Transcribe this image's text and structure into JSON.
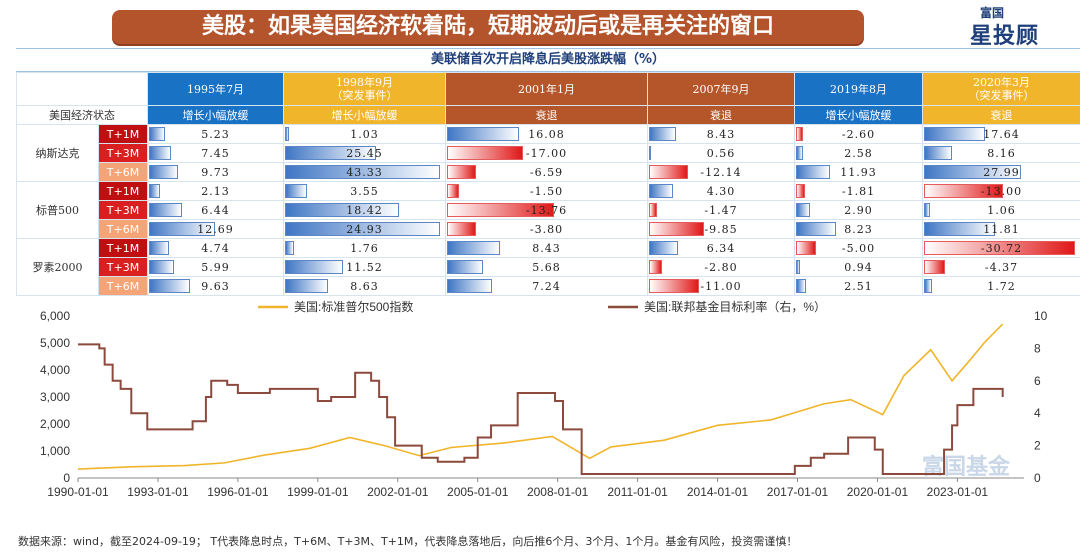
{
  "title": "美股：如果美国经济软着陆，短期波动后或是再关注的窗口",
  "logo": {
    "line1": "富国",
    "line2": "星投顾"
  },
  "table": {
    "title": "美联储首次开启降息后美股涨跌幅（%）",
    "status_header": "美国经济状态",
    "events": [
      {
        "date": "1995年7月",
        "note": "",
        "status": "增长小幅放缓",
        "color": "#1a72c5"
      },
      {
        "date": "1998年9月",
        "note": "（突发事件）",
        "status": "增长小幅放缓",
        "color": "#f0b52a"
      },
      {
        "date": "2001年1月",
        "note": "",
        "status": "衰退",
        "color": "#b5562a"
      },
      {
        "date": "2007年9月",
        "note": "",
        "status": "衰退",
        "color": "#b5562a"
      },
      {
        "date": "2019年8月",
        "note": "",
        "status": "增长小幅放缓",
        "color": "#1a72c5"
      },
      {
        "date": "2020年3月",
        "note": "（突发事件）",
        "status": "衰退",
        "color": "#f0b52a"
      }
    ],
    "groups": [
      {
        "name": "纳斯达克",
        "rows": [
          {
            "label": "T+1M",
            "values": [
              "5.23",
              "1.03",
              "16.08",
              "8.43",
              "-2.60",
              "17.64"
            ]
          },
          {
            "label": "T+3M",
            "values": [
              "7.45",
              "25.45",
              "-17.00",
              "0.56",
              "2.58",
              "8.16"
            ]
          },
          {
            "label": "T+6M",
            "values": [
              "9.73",
              "43.33",
              "-6.59",
              "-12.14",
              "11.93",
              "27.99"
            ]
          }
        ]
      },
      {
        "name": "标普500",
        "rows": [
          {
            "label": "T+1M",
            "values": [
              "2.13",
              "3.55",
              "-1.50",
              "4.30",
              "-1.81",
              "-13.00"
            ]
          },
          {
            "label": "T+3M",
            "values": [
              "6.44",
              "18.42",
              "-13.76",
              "-1.47",
              "2.90",
              "1.06"
            ]
          },
          {
            "label": "T+6M",
            "values": [
              "12.69",
              "24.93",
              "-3.80",
              "-9.85",
              "8.23",
              "11.81"
            ]
          }
        ]
      },
      {
        "name": "罗素2000",
        "rows": [
          {
            "label": "T+1M",
            "values": [
              "4.74",
              "1.76",
              "8.43",
              "6.34",
              "-5.00",
              "-30.72"
            ]
          },
          {
            "label": "T+3M",
            "values": [
              "5.99",
              "11.52",
              "5.68",
              "-2.80",
              "0.94",
              "-4.37"
            ]
          },
          {
            "label": "T+6M",
            "values": [
              "9.63",
              "8.63",
              "7.24",
              "-11.00",
              "2.51",
              "1.72"
            ]
          }
        ]
      }
    ]
  },
  "chart_data": {
    "type": "line",
    "series": [
      {
        "name": "美国:标准普尔500指数",
        "axis": "left",
        "color": "#f0b52a",
        "x": [
          1990,
          1992,
          1994,
          1995.5,
          1997,
          1998.7,
          2000.2,
          2001.5,
          2002.8,
          2004,
          2006,
          2007.8,
          2009.2,
          2010,
          2012,
          2014,
          2016,
          2018,
          2019,
          2020.2,
          2021,
          2022,
          2022.8,
          2023.5,
          2024,
          2024.7
        ],
        "values": [
          330,
          415,
          460,
          560,
          850,
          1100,
          1500,
          1200,
          830,
          1130,
          1300,
          1540,
          730,
          1150,
          1400,
          1950,
          2150,
          2750,
          2900,
          2350,
          3800,
          4750,
          3600,
          4400,
          5000,
          5700
        ]
      },
      {
        "name": "美国:联邦基金目标利率（右，%）",
        "axis": "right",
        "color": "#8c4a3c",
        "x": [
          1990,
          1990.8,
          1991,
          1991.3,
          1991.6,
          1992,
          1992.6,
          1994.0,
          1994.3,
          1994.8,
          1995.0,
          1995.6,
          1996,
          1997.2,
          1998.7,
          1999,
          1999.5,
          2000.4,
          2001,
          2001.3,
          2001.6,
          2001.9,
          2002.9,
          2003.5,
          2004.5,
          2005,
          2005.5,
          2006.5,
          2007.7,
          2007.9,
          2008.2,
          2008.9,
          2015.9,
          2016.9,
          2017.5,
          2018,
          2018.9,
          2019.6,
          2019.9,
          2020.2,
          2022.2,
          2022.5,
          2022.8,
          2023,
          2023.6,
          2024.7
        ],
        "values": [
          8.25,
          8.0,
          7.0,
          6.0,
          5.5,
          4.0,
          3.0,
          3.0,
          3.5,
          5.0,
          6.0,
          5.75,
          5.25,
          5.5,
          5.5,
          4.75,
          5.0,
          6.5,
          6.0,
          5.0,
          3.75,
          2.0,
          1.25,
          1.0,
          1.25,
          2.5,
          3.25,
          5.25,
          5.25,
          4.75,
          3.0,
          0.25,
          0.25,
          0.75,
          1.25,
          1.5,
          2.5,
          2.5,
          1.75,
          0.25,
          0.25,
          1.75,
          3.25,
          4.5,
          5.5,
          5.0
        ]
      }
    ],
    "x_ticks": [
      "1990-01-01",
      "1993-01-01",
      "1996-01-01",
      "1999-01-01",
      "2002-01-01",
      "2005-01-01",
      "2008-01-01",
      "2011-01-01",
      "2014-01-01",
      "2017-01-01",
      "2020-01-01",
      "2023-01-01"
    ],
    "x_tick_years": [
      1990,
      1993,
      1996,
      1999,
      2002,
      2005,
      2008,
      2011,
      2014,
      2017,
      2020,
      2023
    ],
    "xlim": [
      1990,
      2025.5
    ],
    "ylim_left": [
      0,
      6000
    ],
    "ylim_right": [
      0,
      10
    ],
    "y_left_ticks": [
      "0",
      "1,000",
      "2,000",
      "3,000",
      "4,000",
      "5,000",
      "6,000"
    ],
    "y_right_ticks": [
      "0",
      "2",
      "4",
      "6",
      "8",
      "10"
    ],
    "watermark": "富国基金"
  },
  "footer": "数据来源：wind，截至2024-09-19； T代表降息时点，T+6M、T+3M、T+1M，代表降息落地后，向后推6个月、3个月、1个月。基金有风险，投资需谨慎！"
}
